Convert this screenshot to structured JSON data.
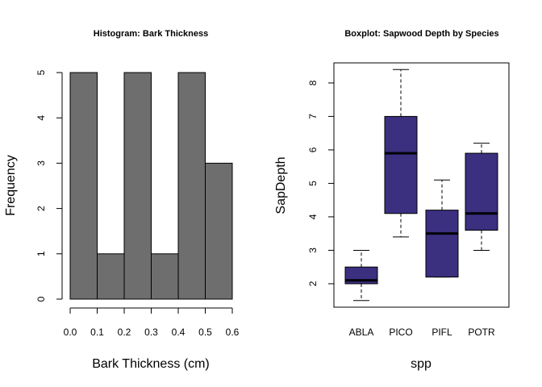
{
  "chart_data": [
    {
      "type": "bar",
      "title": "Histogram: Bark Thickness",
      "xlabel": "Bark Thickness (cm)",
      "ylabel": "Frequency",
      "bins": [
        [
          0.0,
          0.1
        ],
        [
          0.1,
          0.2
        ],
        [
          0.2,
          0.3
        ],
        [
          0.3,
          0.4
        ],
        [
          0.4,
          0.5
        ],
        [
          0.5,
          0.6
        ]
      ],
      "values": [
        5,
        1,
        5,
        1,
        5,
        3
      ],
      "xlim": [
        0,
        0.6
      ],
      "ylim": [
        0,
        5
      ],
      "xticks": [
        "0.0",
        "0.1",
        "0.2",
        "0.3",
        "0.4",
        "0.5",
        "0.6"
      ],
      "yticks": [
        "0",
        "1",
        "2",
        "3",
        "4",
        "5"
      ],
      "bar_color": "#6e6e6e",
      "grid": false
    },
    {
      "type": "box",
      "title": "Boxplot: Sapwood Depth by Species",
      "xlabel": "spp",
      "ylabel": "SapDepth",
      "categories": [
        "ABLA",
        "PICO",
        "PIFL",
        "POTR"
      ],
      "boxes": [
        {
          "min": 1.5,
          "q1": 2.0,
          "median": 2.1,
          "q3": 2.5,
          "max": 3.0
        },
        {
          "min": 3.4,
          "q1": 4.1,
          "median": 5.9,
          "q3": 7.0,
          "max": 8.4
        },
        {
          "min": 2.2,
          "q1": 2.2,
          "median": 3.5,
          "q3": 4.2,
          "max": 5.1
        },
        {
          "min": 3.0,
          "q1": 3.6,
          "median": 4.1,
          "q3": 5.9,
          "max": 6.2
        }
      ],
      "ylim": [
        1.3,
        8.6
      ],
      "yticks": [
        "2",
        "3",
        "4",
        "5",
        "6",
        "7",
        "8"
      ],
      "box_color": "#3b2f80",
      "grid": false
    }
  ]
}
